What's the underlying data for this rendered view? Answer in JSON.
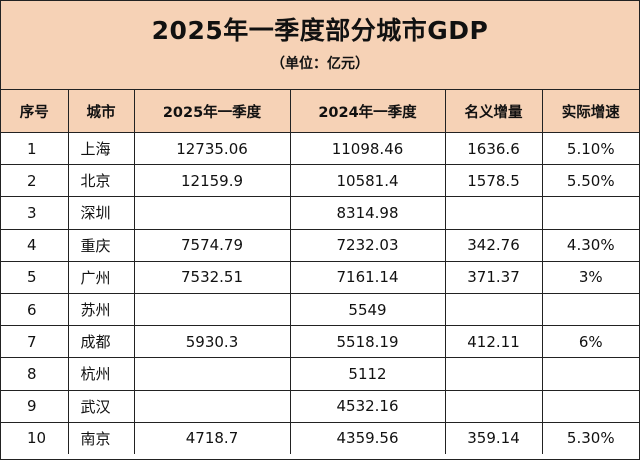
{
  "title": "2025年一季度部分城市GDP",
  "subtitle": "（单位：亿元）",
  "columns": [
    "序号",
    "城市",
    "2025年一季度",
    "2024年一季度",
    "名义增量",
    "实际增速"
  ],
  "rows": [
    {
      "idx": "1",
      "city": "上海",
      "q1_2025": "12735.06",
      "q1_2024": "11098.46",
      "increment": "1636.6",
      "growth": "5.10%"
    },
    {
      "idx": "2",
      "city": "北京",
      "q1_2025": "12159.9",
      "q1_2024": "10581.4",
      "increment": "1578.5",
      "growth": "5.50%"
    },
    {
      "idx": "3",
      "city": "深圳",
      "q1_2025": "",
      "q1_2024": "8314.98",
      "increment": "",
      "growth": ""
    },
    {
      "idx": "4",
      "city": "重庆",
      "q1_2025": "7574.79",
      "q1_2024": "7232.03",
      "increment": "342.76",
      "growth": "4.30%"
    },
    {
      "idx": "5",
      "city": "广州",
      "q1_2025": "7532.51",
      "q1_2024": "7161.14",
      "increment": "371.37",
      "growth": "3%"
    },
    {
      "idx": "6",
      "city": "苏州",
      "q1_2025": "",
      "q1_2024": "5549",
      "increment": "",
      "growth": ""
    },
    {
      "idx": "7",
      "city": "成都",
      "q1_2025": "5930.3",
      "q1_2024": "5518.19",
      "increment": "412.11",
      "growth": "6%"
    },
    {
      "idx": "8",
      "city": "杭州",
      "q1_2025": "",
      "q1_2024": "5112",
      "increment": "",
      "growth": ""
    },
    {
      "idx": "9",
      "city": "武汉",
      "q1_2025": "",
      "q1_2024": "4532.16",
      "increment": "",
      "growth": ""
    },
    {
      "idx": "10",
      "city": "南京",
      "q1_2025": "4718.7",
      "q1_2024": "4359.56",
      "increment": "359.14",
      "growth": "5.30%"
    }
  ],
  "colors": {
    "header_bg": "#f6d2b6",
    "border": "#222222",
    "text": "#111111"
  }
}
